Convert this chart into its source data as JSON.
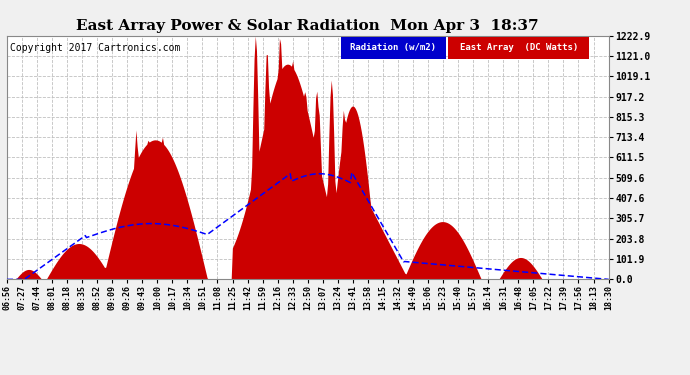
{
  "title": "East Array Power & Solar Radiation  Mon Apr 3  18:37",
  "copyright": "Copyright 2017 Cartronics.com",
  "legend_radiation": "Radiation (w/m2)",
  "legend_east": "East Array  (DC Watts)",
  "y_ticks": [
    0.0,
    101.9,
    203.8,
    305.7,
    407.6,
    509.6,
    611.5,
    713.4,
    815.3,
    917.2,
    1019.1,
    1121.0,
    1222.9
  ],
  "y_max": 1222.9,
  "x_labels": [
    "06:56",
    "07:27",
    "07:44",
    "08:01",
    "08:18",
    "08:35",
    "08:52",
    "09:09",
    "09:26",
    "09:43",
    "10:00",
    "10:17",
    "10:34",
    "10:51",
    "11:08",
    "11:25",
    "11:42",
    "11:59",
    "12:16",
    "12:33",
    "12:50",
    "13:07",
    "13:24",
    "13:41",
    "13:58",
    "14:15",
    "14:32",
    "14:49",
    "15:06",
    "15:23",
    "15:40",
    "15:57",
    "16:14",
    "16:31",
    "16:48",
    "17:05",
    "17:22",
    "17:39",
    "17:56",
    "18:13",
    "18:30"
  ],
  "background_color": "#f0f0f0",
  "plot_bg_color": "#ffffff",
  "grid_color": "#c0c0c0",
  "red_fill_color": "#cc0000",
  "blue_line_color": "#0000ff",
  "title_color": "#000000",
  "copyright_color": "#000000",
  "radiation_label_bg": "#0000cc",
  "radiation_label_fg": "#ffffff",
  "east_label_bg": "#cc0000",
  "east_label_fg": "#ffffff"
}
